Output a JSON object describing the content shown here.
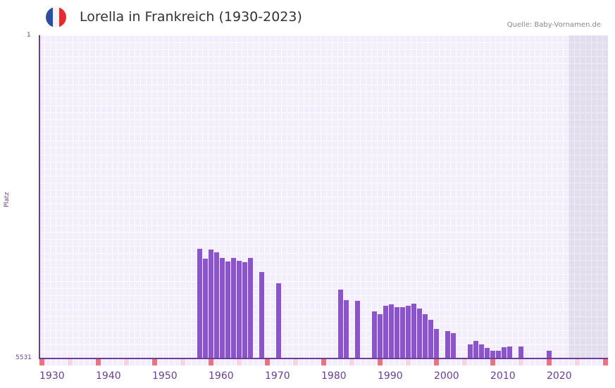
{
  "header": {
    "title": "Lorella in Frankreich (1930-2023)",
    "source": "Quelle: Baby-Vornamen.de",
    "flag_colors": [
      "#2b4ea2",
      "#f4f4f4",
      "#e32b32"
    ]
  },
  "colors": {
    "bar": "#8a55c6",
    "axis": "#6a3d9a",
    "marker_major": "#e57580",
    "marker_minor": "#f5d5de",
    "grid_bg": "#f2eefb"
  },
  "chart_data": {
    "type": "bar",
    "title": "Lorella in Frankreich (1930-2023)",
    "xlabel": "",
    "ylabel": "Platz",
    "y_inverted": true,
    "ylim": [
      1,
      5531
    ],
    "y_tick_labels": [
      "1",
      "5531"
    ],
    "x_tick_labels": [
      "1930",
      "1940",
      "1950",
      "1960",
      "1970",
      "1980",
      "1990",
      "2000",
      "2010",
      "2020"
    ],
    "xlim": [
      1930,
      2030
    ],
    "grid": true,
    "categories": [
      1958,
      1959,
      1960,
      1961,
      1962,
      1963,
      1964,
      1965,
      1966,
      1967,
      1969,
      1972,
      1983,
      1984,
      1986,
      1989,
      1990,
      1991,
      1992,
      1993,
      1994,
      1995,
      1996,
      1997,
      1998,
      1999,
      2000,
      2002,
      2003,
      2006,
      2007,
      2008,
      2009,
      2010,
      2011,
      2012,
      2013,
      2015,
      2020
    ],
    "values": [
      3655,
      3823,
      3667,
      3715,
      3811,
      3872,
      3811,
      3860,
      3884,
      3811,
      4052,
      4244,
      4353,
      4533,
      4545,
      4725,
      4773,
      4629,
      4605,
      4653,
      4653,
      4629,
      4593,
      4677,
      4773,
      4869,
      5026,
      5062,
      5098,
      5290,
      5230,
      5290,
      5350,
      5398,
      5398,
      5338,
      5326,
      5326,
      5398
    ]
  }
}
